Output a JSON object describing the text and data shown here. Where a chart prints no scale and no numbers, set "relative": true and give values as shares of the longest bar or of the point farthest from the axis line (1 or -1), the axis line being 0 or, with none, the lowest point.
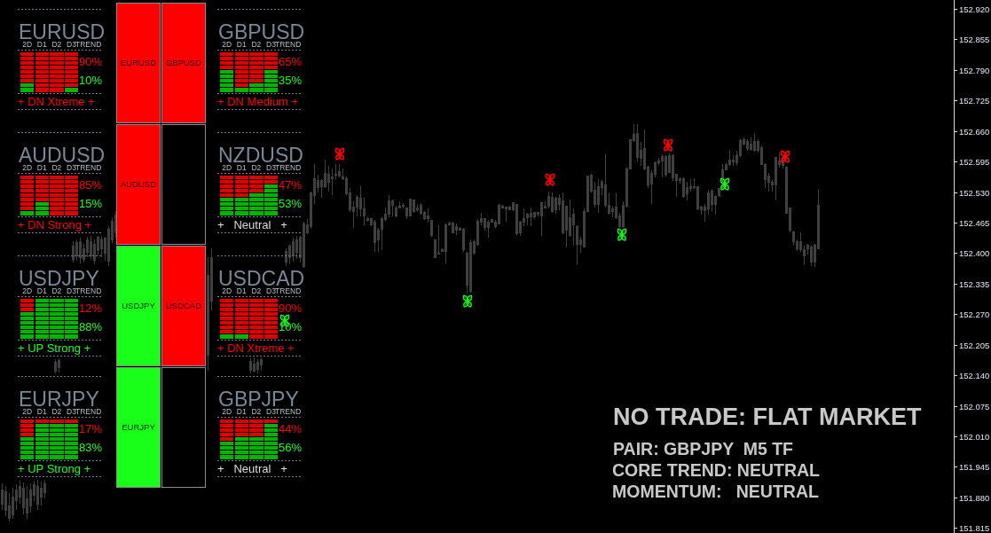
{
  "chart_data": [
    {
      "type": "candlestick",
      "color": "#404040",
      "categories": [
        null,
        null,
        null,
        null,
        null,
        null,
        null,
        null,
        null,
        null,
        null,
        null,
        null,
        null,
        null,
        null,
        null,
        null,
        null,
        null,
        null,
        null,
        null,
        null,
        null,
        null,
        null,
        null,
        null,
        null,
        null,
        null,
        null,
        null,
        null,
        null,
        null,
        null,
        null,
        null,
        null,
        null,
        null,
        null,
        null,
        null,
        null,
        null,
        null,
        null,
        null,
        null,
        null,
        null,
        null,
        null,
        null,
        null,
        null,
        null,
        null,
        null,
        null,
        null,
        null,
        null,
        null,
        null,
        null,
        null,
        null,
        null,
        null,
        null,
        null,
        null,
        null,
        null,
        null,
        null,
        null,
        null,
        null,
        null,
        null,
        null,
        null,
        null,
        null,
        null,
        null,
        null,
        null,
        null,
        null,
        null,
        null,
        null,
        null,
        null,
        null,
        null,
        null,
        null,
        null,
        null,
        null,
        null,
        null,
        null,
        null,
        null,
        null,
        null,
        null,
        null,
        null,
        null,
        null,
        null,
        null,
        null,
        null,
        null,
        null,
        null,
        null,
        null,
        null,
        null,
        null,
        null,
        null,
        null,
        null,
        null,
        null,
        null,
        null,
        null,
        null,
        null,
        null,
        null,
        null,
        null,
        null,
        null,
        null,
        null,
        null,
        null,
        null,
        null,
        null,
        null,
        null,
        null,
        null,
        null,
        null,
        null,
        null,
        null,
        null,
        null,
        null,
        null,
        null,
        null,
        null,
        null,
        null,
        null,
        null,
        null,
        null,
        null,
        null,
        null,
        null,
        null,
        null,
        null,
        null,
        null,
        null,
        null,
        null,
        null,
        null,
        null,
        null,
        null,
        null,
        null,
        null,
        null,
        null,
        null,
        null,
        null,
        null,
        null,
        null,
        null,
        null,
        null,
        null,
        null,
        null,
        null,
        null,
        null,
        null,
        null,
        null,
        null,
        null,
        null,
        null,
        null,
        null,
        null,
        null,
        null,
        null,
        null,
        null,
        null,
        null,
        null,
        null,
        null,
        null,
        null,
        null,
        null,
        null,
        null,
        null,
        null,
        null,
        null,
        null,
        null,
        null,
        null,
        null,
        null,
        null,
        null,
        null,
        null,
        null,
        null,
        null,
        null,
        null,
        null,
        null,
        null,
        null,
        null,
        null,
        null,
        null,
        null
      ],
      "ohlc": [
        [
          151.866,
          151.909,
          151.853,
          151.896
        ],
        [
          151.853,
          151.904,
          151.84,
          151.891
        ],
        [
          151.836,
          151.889,
          151.828,
          151.862
        ],
        [
          151.843,
          151.9,
          151.834,
          151.881
        ],
        [
          151.872,
          151.907,
          151.853,
          151.896
        ],
        [
          151.881,
          151.915,
          151.866,
          151.904
        ],
        [
          151.858,
          151.911,
          151.843,
          151.9
        ],
        [
          151.847,
          151.904,
          151.834,
          151.877
        ],
        [
          151.862,
          151.909,
          151.847,
          151.896
        ],
        [
          151.885,
          151.915,
          151.872,
          151.907
        ],
        [
          151.866,
          151.917,
          151.853,
          151.904
        ],
        [
          151.881,
          151.913,
          151.862,
          151.9
        ],
        [
          151.889,
          151.917,
          151.877,
          151.909
        ],
        null,
        null,
        [
          152.149,
          152.174,
          152.144,
          152.168
        ],
        [
          152.157,
          152.176,
          152.146,
          152.172
        ],
        null,
        null,
        null,
        [
          152.387,
          152.425,
          152.38,
          152.414
        ],
        [
          152.395,
          152.429,
          152.384,
          152.423
        ],
        [
          152.391,
          152.433,
          152.378,
          152.425
        ],
        [
          152.387,
          152.42,
          152.38,
          152.41
        ],
        [
          152.401,
          152.435,
          152.391,
          152.429
        ],
        [
          152.395,
          152.436,
          152.387,
          152.425
        ],
        [
          152.384,
          152.429,
          152.376,
          152.418
        ],
        [
          152.406,
          152.436,
          152.395,
          152.433
        ],
        [
          152.41,
          152.436,
          152.391,
          152.429
        ],
        [
          152.399,
          152.435,
          152.384,
          152.431
        ],
        [
          152.382,
          152.457,
          152.372,
          152.451
        ],
        [
          152.429,
          152.476,
          152.42,
          152.467
        ],
        [
          152.444,
          152.489,
          152.433,
          152.481
        ],
        null,
        null,
        null,
        null,
        null,
        null,
        null,
        null,
        null,
        null,
        null,
        null,
        null,
        null,
        null,
        null,
        null,
        null,
        null,
        null,
        null,
        null,
        null,
        null,
        null,
        [
          152.183,
          152.391,
          152.15,
          152.353
        ],
        [
          152.297,
          152.41,
          152.278,
          152.391
        ],
        null,
        null,
        null,
        null,
        null,
        null,
        null,
        null,
        null,
        null,
        [
          152.151,
          152.176,
          152.144,
          152.17
        ],
        [
          152.149,
          152.178,
          152.146,
          152.164
        ],
        [
          152.153,
          152.174,
          152.144,
          152.168
        ],
        [
          152.161,
          152.178,
          152.149,
          152.174
        ],
        null,
        null,
        null,
        null,
        null,
        null,
        [
          152.38,
          152.41,
          152.372,
          152.403
        ],
        [
          152.391,
          152.42,
          152.376,
          152.414
        ],
        [
          152.395,
          152.433,
          152.382,
          152.425
        ],
        [
          152.401,
          152.436,
          152.387,
          152.429
        ],
        [
          152.391,
          152.436,
          152.38,
          152.433
        ],
        [
          152.372,
          152.466,
          152.369,
          152.463
        ],
        [
          152.444,
          152.473,
          152.441,
          152.46
        ],
        [
          152.457,
          152.532,
          152.451,
          152.529
        ],
        [
          152.523,
          152.589,
          152.504,
          152.558
        ],
        [
          152.539,
          152.567,
          152.529,
          152.555
        ],
        [
          152.542,
          152.558,
          152.517,
          152.555
        ],
        [
          152.542,
          152.599,
          152.539,
          152.57
        ],
        [
          152.551,
          152.586,
          152.532,
          152.567
        ],
        [
          152.558,
          152.58,
          152.523,
          152.562
        ],
        [
          152.566,
          152.589,
          152.555,
          152.568
        ],
        [
          152.564,
          152.589,
          152.561,
          152.573
        ],
        [
          152.558,
          152.58,
          152.555,
          152.562
        ],
        [
          152.526,
          152.564,
          152.523,
          152.559
        ],
        [
          152.492,
          152.539,
          152.488,
          152.528
        ],
        [
          152.488,
          152.51,
          152.454,
          152.498
        ],
        [
          152.498,
          152.523,
          152.479,
          152.518
        ],
        [
          152.495,
          152.545,
          152.479,
          152.517
        ],
        [
          152.479,
          152.517,
          152.46,
          152.495
        ],
        [
          152.47,
          152.476,
          152.466,
          152.473
        ],
        [
          152.461,
          152.474,
          152.457,
          152.474
        ],
        [
          152.422,
          152.47,
          152.403,
          152.466
        ],
        [
          152.429,
          152.454,
          152.403,
          152.449
        ],
        [
          152.451,
          152.476,
          152.407,
          152.474
        ],
        [
          152.471,
          152.498,
          152.466,
          152.482
        ],
        [
          152.482,
          152.524,
          152.476,
          152.512
        ],
        [
          152.501,
          152.514,
          152.479,
          152.512
        ],
        [
          152.48,
          152.501,
          152.476,
          152.497
        ],
        [
          152.497,
          152.51,
          152.495,
          152.5
        ],
        [
          152.499,
          152.507,
          152.495,
          152.502
        ],
        [
          152.48,
          152.498,
          152.473,
          152.497
        ],
        [
          152.479,
          152.515,
          152.478,
          152.515
        ],
        [
          152.488,
          152.515,
          152.485,
          152.514
        ],
        [
          152.493,
          152.504,
          152.488,
          152.497
        ],
        [
          152.485,
          152.507,
          152.482,
          152.502
        ],
        [
          152.473,
          152.49,
          152.47,
          152.487
        ],
        [
          152.473,
          152.496,
          152.465,
          152.479
        ],
        [
          152.437,
          152.47,
          152.435,
          152.47
        ],
        [
          152.391,
          152.43,
          152.389,
          152.429
        ],
        [
          152.397,
          152.459,
          152.397,
          152.4
        ],
        [
          152.403,
          152.41,
          152.402,
          152.407
        ],
        [
          152.403,
          152.463,
          152.378,
          152.46
        ],
        [
          152.461,
          152.466,
          152.46,
          152.464
        ],
        [
          152.444,
          152.466,
          152.442,
          152.464
        ],
        [
          152.448,
          152.463,
          152.438,
          152.457
        ],
        [
          152.449,
          152.455,
          152.448,
          152.452
        ],
        [
          152.407,
          152.454,
          152.403,
          152.451
        ],
        [
          152.331,
          152.403,
          152.315,
          152.4
        ],
        [
          152.318,
          152.429,
          152.315,
          152.422
        ],
        [
          152.4,
          152.429,
          152.397,
          152.425
        ],
        [
          152.419,
          152.473,
          152.416,
          152.468
        ],
        [
          152.466,
          152.485,
          152.46,
          152.474
        ],
        [
          152.454,
          152.474,
          152.448,
          152.473
        ],
        [
          152.455,
          152.47,
          152.432,
          152.466
        ],
        [
          152.466,
          152.473,
          152.465,
          152.471
        ],
        [
          152.457,
          152.47,
          152.453,
          152.466
        ],
        [
          152.463,
          152.504,
          152.461,
          152.501
        ],
        [
          152.497,
          152.502,
          152.495,
          152.5
        ],
        [
          152.495,
          152.499,
          152.466,
          152.498
        ],
        [
          152.493,
          152.501,
          152.492,
          152.498
        ],
        [
          152.492,
          152.509,
          152.49,
          152.507
        ],
        [
          152.441,
          152.505,
          152.438,
          152.504
        ],
        [
          152.444,
          152.468,
          152.436,
          152.465
        ],
        [
          152.466,
          152.495,
          152.457,
          152.474
        ],
        [
          152.476,
          152.485,
          152.46,
          152.482
        ],
        [
          152.478,
          152.498,
          152.457,
          152.485
        ],
        [
          152.478,
          152.488,
          152.473,
          152.487
        ],
        [
          152.482,
          152.488,
          152.478,
          152.487
        ],
        [
          152.479,
          152.509,
          152.436,
          152.507
        ],
        [
          152.497,
          152.51,
          152.495,
          152.499
        ],
        [
          152.499,
          152.532,
          152.495,
          152.521
        ],
        [
          152.488,
          152.529,
          152.485,
          152.518
        ],
        [
          152.492,
          152.52,
          152.484,
          152.517
        ],
        [
          152.504,
          152.526,
          152.492,
          152.517
        ],
        [
          152.444,
          152.529,
          152.441,
          152.512
        ],
        [
          152.448,
          152.501,
          152.413,
          152.499
        ],
        [
          152.438,
          152.515,
          152.435,
          152.476
        ],
        [
          152.46,
          152.495,
          152.416,
          152.482
        ],
        [
          152.419,
          152.46,
          152.375,
          152.457
        ],
        [
          152.419,
          152.435,
          152.4,
          152.429
        ],
        [
          152.413,
          152.495,
          152.412,
          152.488
        ],
        [
          152.488,
          152.566,
          152.487,
          152.564
        ],
        [
          152.532,
          152.568,
          152.529,
          152.566
        ],
        [
          152.504,
          152.551,
          152.498,
          152.534
        ],
        [
          152.503,
          152.558,
          152.485,
          152.541
        ],
        [
          152.54,
          152.555,
          152.523,
          152.55
        ],
        [
          152.501,
          152.611,
          152.498,
          152.546
        ],
        [
          152.485,
          152.529,
          152.482,
          152.501
        ],
        [
          152.488,
          152.501,
          152.476,
          152.495
        ],
        [
          152.476,
          152.529,
          152.473,
          152.498
        ],
        [
          152.457,
          152.485,
          152.454,
          152.48
        ],
        [
          152.457,
          152.51,
          152.454,
          152.501
        ],
        [
          152.499,
          152.583,
          152.498,
          152.58
        ],
        [
          152.58,
          152.642,
          152.578,
          152.641
        ],
        [
          152.64,
          152.674,
          152.637,
          152.652
        ],
        [
          152.604,
          152.674,
          152.596,
          152.654
        ],
        [
          152.602,
          152.637,
          152.586,
          152.619
        ],
        [
          152.58,
          152.663,
          152.577,
          152.623
        ],
        [
          152.545,
          152.586,
          152.539,
          152.583
        ],
        [
          152.547,
          152.577,
          152.504,
          152.57
        ],
        [
          152.568,
          152.596,
          152.561,
          152.592
        ],
        [
          152.592,
          152.602,
          152.586,
          152.597
        ],
        [
          152.596,
          152.611,
          152.561,
          152.605
        ],
        [
          152.568,
          152.608,
          152.564,
          152.605
        ],
        [
          152.572,
          152.613,
          152.57,
          152.608
        ],
        [
          152.561,
          152.611,
          152.553,
          152.608
        ],
        [
          152.555,
          152.568,
          152.52,
          152.567
        ],
        [
          152.555,
          152.561,
          152.548,
          152.558
        ],
        [
          152.52,
          152.561,
          152.517,
          152.558
        ],
        [
          152.526,
          152.551,
          152.512,
          152.539
        ],
        [
          152.537,
          152.558,
          152.532,
          152.542
        ],
        [
          152.539,
          152.56,
          152.536,
          152.541
        ],
        [
          152.495,
          152.543,
          152.492,
          152.542
        ],
        [
          152.493,
          152.501,
          152.482,
          152.498
        ],
        [
          152.49,
          152.504,
          152.466,
          152.498
        ],
        [
          152.495,
          152.534,
          152.482,
          152.529
        ],
        [
          152.503,
          152.536,
          152.488,
          152.532
        ],
        [
          152.503,
          152.523,
          152.482,
          152.52
        ],
        [
          152.523,
          152.539,
          152.52,
          152.537
        ],
        [
          152.537,
          152.589,
          152.534,
          152.578
        ],
        [
          152.578,
          152.592,
          152.577,
          152.588
        ],
        [
          152.589,
          152.619,
          152.586,
          152.599
        ],
        [
          152.594,
          152.608,
          152.586,
          152.599
        ],
        [
          152.592,
          152.618,
          152.586,
          152.608
        ],
        [
          152.608,
          152.642,
          152.605,
          152.64
        ],
        [
          152.632,
          152.646,
          152.63,
          152.642
        ],
        [
          152.623,
          152.643,
          152.618,
          152.638
        ],
        [
          152.621,
          152.646,
          152.618,
          152.632
        ],
        [
          152.619,
          152.655,
          152.616,
          152.638
        ],
        [
          152.618,
          152.642,
          152.615,
          152.638
        ],
        [
          152.589,
          152.63,
          152.588,
          152.625
        ],
        [
          152.556,
          152.591,
          152.539,
          152.589
        ],
        [
          152.55,
          152.57,
          152.532,
          152.564
        ],
        [
          152.545,
          152.555,
          152.532,
          152.551
        ],
        [
          152.545,
          152.605,
          152.514,
          152.604
        ],
        [
          152.589,
          152.615,
          152.583,
          152.596
        ],
        [
          152.586,
          152.605,
          152.58,
          152.599
        ],
        [
          152.485,
          152.586,
          152.484,
          152.583
        ],
        [
          152.448,
          152.498,
          152.444,
          152.497
        ],
        [
          152.425,
          152.448,
          152.416,
          152.446
        ],
        [
          152.41,
          152.429,
          152.405,
          152.425
        ],
        [
          152.407,
          152.444,
          152.403,
          152.424
        ],
        [
          152.394,
          152.416,
          152.375,
          152.407
        ],
        [
          152.41,
          152.419,
          152.397,
          152.416
        ],
        [
          152.381,
          152.416,
          152.372,
          152.413
        ],
        [
          152.38,
          152.419,
          152.371,
          152.416
        ],
        [
          152.41,
          152.537,
          152.409,
          152.502
        ],
        null,
        null,
        null,
        null,
        null,
        null,
        null,
        null,
        null,
        null,
        null,
        null,
        null,
        null,
        null,
        null,
        null,
        null,
        null,
        null,
        null,
        null,
        null,
        null,
        null,
        null,
        null,
        null,
        null,
        null,
        null,
        null,
        null,
        null,
        null,
        null,
        null
      ],
      "ylim": [
        151.804,
        152.939
      ],
      "yticks": [
        {
          "value": 151.815,
          "label": "151.815"
        },
        {
          "value": 151.88,
          "label": "151.880"
        },
        {
          "value": 151.945,
          "label": "151.945"
        },
        {
          "value": 152.01,
          "label": "152.010"
        },
        {
          "value": 152.075,
          "label": "152.075"
        },
        {
          "value": 152.14,
          "label": "152.140"
        },
        {
          "value": 152.205,
          "label": "152.205"
        },
        {
          "value": 152.27,
          "label": "152.270"
        },
        {
          "value": 152.335,
          "label": "152.335"
        },
        {
          "value": 152.4,
          "label": "152.400"
        },
        {
          "value": 152.465,
          "label": "152.465"
        },
        {
          "value": 152.53,
          "label": "152.530"
        },
        {
          "value": 152.595,
          "label": "152.595"
        },
        {
          "value": 152.66,
          "label": "152.660"
        },
        {
          "value": 152.725,
          "label": "152.725"
        },
        {
          "value": 152.79,
          "label": "152.790"
        },
        {
          "value": 152.855,
          "label": "152.855"
        },
        {
          "value": 152.92,
          "label": "152.920"
        }
      ],
      "tick_labels": "y",
      "annotations": [
        "EURUSD",
        "GBPUSD",
        "AUDUSD",
        "USDJPY",
        "USDCAD",
        "EURJPY",
        "NO TRADE: FLAT MARKET",
        "PAIR: GBPJPY  M5 TF",
        "CORE TREND: NEUTRAL",
        "MOMENTUM:   NEUTRAL"
      ]
    },
    {
      "type": "bar",
      "stacked": true,
      "relative": true,
      "title": "EURUSD",
      "categories": [
        "2D",
        "D1",
        "D2",
        "D3"
      ],
      "series": [
        {
          "color": "#00b400",
          "values": [
            0.222,
            0,
            0,
            0.111
          ]
        },
        {
          "color": "#dd0000",
          "values": [
            0.778,
            1,
            1,
            0.889
          ]
        }
      ],
      "annotations": [
        "TREND",
        "90%",
        "10%",
        "+ DN Xtreme +"
      ]
    },
    {
      "type": "bar",
      "stacked": true,
      "relative": true,
      "title": "GBPUSD",
      "categories": [
        "2D",
        "D1",
        "D2",
        "D3"
      ],
      "series": [
        {
          "color": "#00b400",
          "values": [
            0.556,
            0.111,
            0.222,
            0.556
          ]
        },
        {
          "color": "#dd0000",
          "values": [
            0.444,
            0.889,
            0.778,
            0.444
          ]
        }
      ],
      "annotations": [
        "TREND",
        "65%",
        "35%",
        "+ DN Medium +"
      ]
    },
    {
      "type": "bar",
      "stacked": true,
      "relative": true,
      "title": "AUDUSD",
      "categories": [
        "2D",
        "D1",
        "D2",
        "D3"
      ],
      "series": [
        {
          "color": "#00b400",
          "values": [
            0.111,
            0.333,
            0,
            0
          ]
        },
        {
          "color": "#dd0000",
          "values": [
            0.889,
            0.667,
            1,
            1
          ]
        }
      ],
      "annotations": [
        "TREND",
        "85%",
        "15%",
        "+ DN Strong +"
      ]
    },
    {
      "type": "bar",
      "stacked": true,
      "relative": true,
      "title": "NZDUSD",
      "categories": [
        "2D",
        "D1",
        "D2",
        "D3"
      ],
      "series": [
        {
          "color": "#00b400",
          "values": [
            0.444,
            0.444,
            0.556,
            0.778
          ]
        },
        {
          "color": "#dd0000",
          "values": [
            0.556,
            0.556,
            0.444,
            0.222
          ]
        }
      ],
      "annotations": [
        "TREND",
        "47%",
        "53%",
        "+   Neutral   +"
      ]
    },
    {
      "type": "bar",
      "stacked": true,
      "relative": true,
      "title": "USDJPY",
      "categories": [
        "2D",
        "D1",
        "D2",
        "D3"
      ],
      "series": [
        {
          "color": "#00b400",
          "values": [
            0.667,
            1,
            1,
            1
          ]
        },
        {
          "color": "#dd0000",
          "values": [
            0.333,
            0,
            0,
            0
          ]
        }
      ],
      "annotations": [
        "TREND",
        "12%",
        "88%",
        "+ UP Strong +"
      ]
    },
    {
      "type": "bar",
      "stacked": true,
      "relative": true,
      "title": "USDCAD",
      "categories": [
        "2D",
        "D1",
        "D2",
        "D3"
      ],
      "series": [
        {
          "color": "#00b400",
          "values": [
            0.111,
            0.111,
            0,
            0
          ]
        },
        {
          "color": "#dd0000",
          "values": [
            0.889,
            0.889,
            1,
            1
          ]
        }
      ],
      "annotations": [
        "TREND",
        "90%",
        "10%",
        "+ DN Xtreme +"
      ]
    },
    {
      "type": "bar",
      "stacked": true,
      "relative": true,
      "title": "EURJPY",
      "categories": [
        "2D",
        "D1",
        "D2",
        "D3"
      ],
      "series": [
        {
          "color": "#00b400",
          "values": [
            0.556,
            0.889,
            0.889,
            0.889
          ]
        },
        {
          "color": "#dd0000",
          "values": [
            0.444,
            0.111,
            0.111,
            0.111
          ]
        }
      ],
      "annotations": [
        "TREND",
        "17%",
        "83%",
        "+ UP Strong +"
      ]
    },
    {
      "type": "bar",
      "stacked": true,
      "relative": true,
      "title": "GBPJPY",
      "categories": [
        "2D",
        "D1",
        "D2",
        "D3"
      ],
      "series": [
        {
          "color": "#00b400",
          "values": [
            0.444,
            0.556,
            0.556,
            0.889
          ]
        },
        {
          "color": "#dd0000",
          "values": [
            0.556,
            0.444,
            0.444,
            0.111
          ]
        }
      ],
      "annotations": [
        "TREND",
        "44%",
        "56%",
        "+   Neutral   +"
      ]
    }
  ]
}
